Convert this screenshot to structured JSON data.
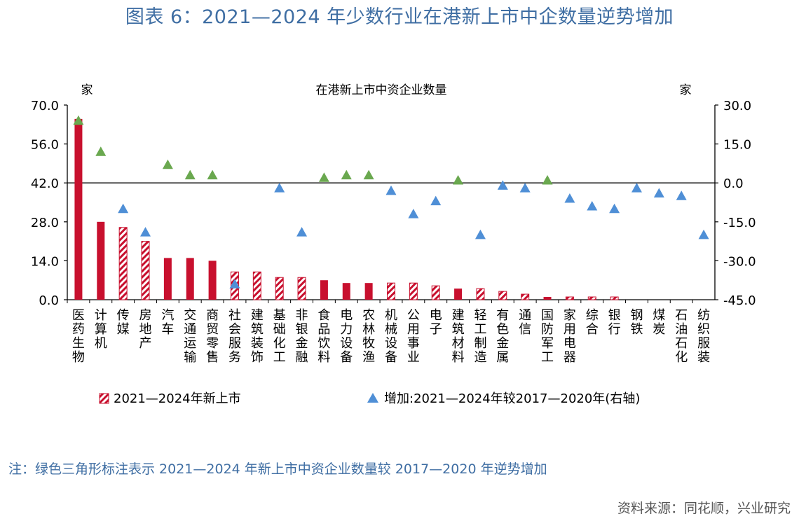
{
  "title": "图表 6：2021—2024 年少数行业在港新上市中企数量逆势增加",
  "note": "注：绿色三角形标注表示 2021—2024 年新上市中资企业数量较 2017—2020 年逆势增加",
  "source": "资料来源：同花顺，兴业研究",
  "chart_data": {
    "type": "bar",
    "title": "在港新上市中资企业数量",
    "ylabel_left": "家",
    "ylabel_right": "家",
    "ylim_left": [
      0,
      70
    ],
    "yticks_left": [
      "70.0",
      "56.0",
      "42.0",
      "28.0",
      "14.0",
      "0.0"
    ],
    "ylim_right": [
      -45,
      30
    ],
    "yticks_right": [
      "30.0",
      "15.0",
      "0.0",
      "-15.0",
      "-30.0",
      "-45.0"
    ],
    "categories": [
      "医药生物",
      "计算机",
      "传媒",
      "房地产",
      "汽车",
      "交通运输",
      "商贸零售",
      "社会服务",
      "建筑装饰",
      "基础化工",
      "非银金融",
      "食品饮料",
      "电力设备",
      "农林牧渔",
      "机械设备",
      "公用事业",
      "电子",
      "建筑材料",
      "轻工制造",
      "有色金属",
      "通信",
      "国防军工",
      "家用电器",
      "综合",
      "银行",
      "钢铁",
      "煤炭",
      "石油石化",
      "纺织服装"
    ],
    "series": [
      {
        "name": "2021—2024年新上市",
        "values": [
          65,
          28,
          26,
          21,
          15,
          15,
          14,
          10,
          10,
          8,
          8,
          7,
          6,
          6,
          6,
          6,
          5,
          4,
          4,
          3,
          2,
          1,
          1,
          1,
          1,
          0,
          0,
          0,
          0
        ],
        "solid": [
          true,
          true,
          false,
          false,
          true,
          true,
          true,
          false,
          false,
          false,
          false,
          true,
          true,
          true,
          false,
          false,
          false,
          true,
          false,
          false,
          false,
          true,
          false,
          false,
          false,
          false,
          false,
          false,
          false
        ]
      },
      {
        "name": "增加:2021—2024年较2017—2020年(右轴)",
        "axis": "right",
        "values": [
          24,
          12,
          -10,
          -19,
          7,
          3,
          3,
          -39,
          null,
          -2,
          -19,
          2,
          3,
          3,
          -3,
          -12,
          -7,
          1,
          -20,
          -1,
          -2,
          1,
          -6,
          -9,
          -10,
          -2,
          -4,
          -5,
          -20
        ],
        "green": [
          true,
          true,
          false,
          false,
          true,
          true,
          true,
          false,
          false,
          false,
          false,
          true,
          true,
          true,
          false,
          false,
          false,
          true,
          false,
          false,
          false,
          true,
          false,
          false,
          false,
          false,
          false,
          false,
          false
        ]
      }
    ],
    "legend": [
      "2021—2024年新上市",
      "增加:2021—2024年较2017—2020年(右轴)"
    ],
    "legend_position": "bottom",
    "colors": {
      "bar": "#c8102e",
      "up": "#6aa84f",
      "down": "#4f8fd6",
      "axis": "#000000"
    }
  }
}
